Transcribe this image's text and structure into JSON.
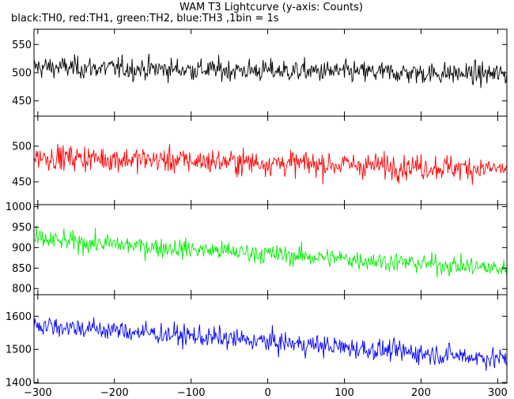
{
  "title": "WAM T3 Lightcurve (y-axis: Counts)",
  "subtitle": "black:TH0, red:TH1, green:TH2, blue:TH3 ,1bin = 1s",
  "chart_data": {
    "type": "line",
    "x_axis": {
      "range": [
        -305,
        312
      ],
      "ticks": [
        -300,
        -200,
        -100,
        0,
        100,
        200,
        300
      ],
      "tick_labels": [
        "−300",
        "−200",
        "−100",
        "0",
        "100",
        "200",
        "300"
      ],
      "bin_seconds": 1
    },
    "panels": [
      {
        "name": "TH0",
        "color": "#000000",
        "ylim": [
          423,
          577
        ],
        "yticks": [
          450,
          500,
          550
        ],
        "ytick_labels": [
          "450",
          "500",
          "550"
        ],
        "baseline_start": 510,
        "baseline_end": 497,
        "noise_amplitude": 22
      },
      {
        "name": "TH1",
        "color": "#ff0000",
        "ylim": [
          418,
          542
        ],
        "yticks": [
          450,
          500
        ],
        "ytick_labels": [
          "450",
          "500"
        ],
        "baseline_start": 485,
        "baseline_end": 468,
        "noise_amplitude": 20
      },
      {
        "name": "TH2",
        "color": "#00ee00",
        "ylim": [
          785,
          1005
        ],
        "yticks": [
          800,
          850,
          900,
          950,
          1000
        ],
        "ytick_labels": [
          "800",
          "850",
          "900",
          "950",
          "1000"
        ],
        "baseline_start": 920,
        "baseline_end": 848,
        "noise_amplitude": 27
      },
      {
        "name": "TH3",
        "color": "#0000ff",
        "ylim": [
          1398,
          1665
        ],
        "yticks": [
          1400,
          1500,
          1600
        ],
        "ytick_labels": [
          "1400",
          "1500",
          "1600"
        ],
        "baseline_start": 1575,
        "baseline_end": 1470,
        "noise_amplitude": 36
      }
    ]
  }
}
